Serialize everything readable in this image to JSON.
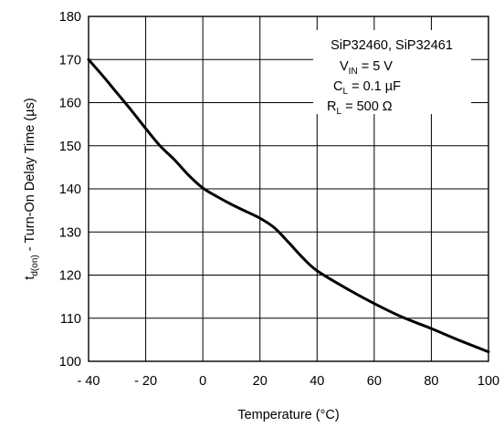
{
  "chart_data": {
    "type": "line",
    "title": "",
    "xlabel": "Temperature (°C)",
    "ylabel": {
      "main": "t",
      "sub": "d(on)",
      "rest": " - Turn-On Delay Time (µs)"
    },
    "xlim": [
      -40,
      100
    ],
    "ylim": [
      100,
      180
    ],
    "xticks": [
      -40,
      -20,
      0,
      20,
      40,
      60,
      80,
      100
    ],
    "yticks": [
      100,
      110,
      120,
      130,
      140,
      150,
      160,
      170,
      180
    ],
    "xtick_labels": [
      "- 40",
      "- 20",
      "0",
      "20",
      "40",
      "60",
      "80",
      "100"
    ],
    "ytick_labels": [
      "100",
      "110",
      "120",
      "130",
      "140",
      "150",
      "160",
      "170",
      "180"
    ],
    "grid": true,
    "series": [
      {
        "x": [
          -40,
          -35,
          -30,
          -25,
          -20,
          -15,
          -10,
          -5,
          0,
          5,
          10,
          15,
          20,
          25,
          30,
          35,
          40,
          50,
          60,
          70,
          80,
          90,
          100
        ],
        "y": [
          170,
          166.2,
          162.2,
          158.2,
          154,
          150,
          146.8,
          143.2,
          140.2,
          138.2,
          136.4,
          134.8,
          133.2,
          131,
          127.6,
          124,
          121,
          117,
          113.4,
          110.2,
          107.6,
          104.8,
          102.2
        ]
      }
    ],
    "annotation": {
      "title": "SiP32460, SiP32461",
      "lines": [
        {
          "main": "V",
          "sub": "IN",
          "rest": " = 5 V"
        },
        {
          "main": "C",
          "sub": "L",
          "rest": " = 0.1 µF"
        },
        {
          "main": "R",
          "sub": "L",
          "rest": " = 500 Ω"
        }
      ]
    }
  },
  "colors": {
    "line": "#000000",
    "grid": "#000000",
    "background": "#ffffff"
  }
}
